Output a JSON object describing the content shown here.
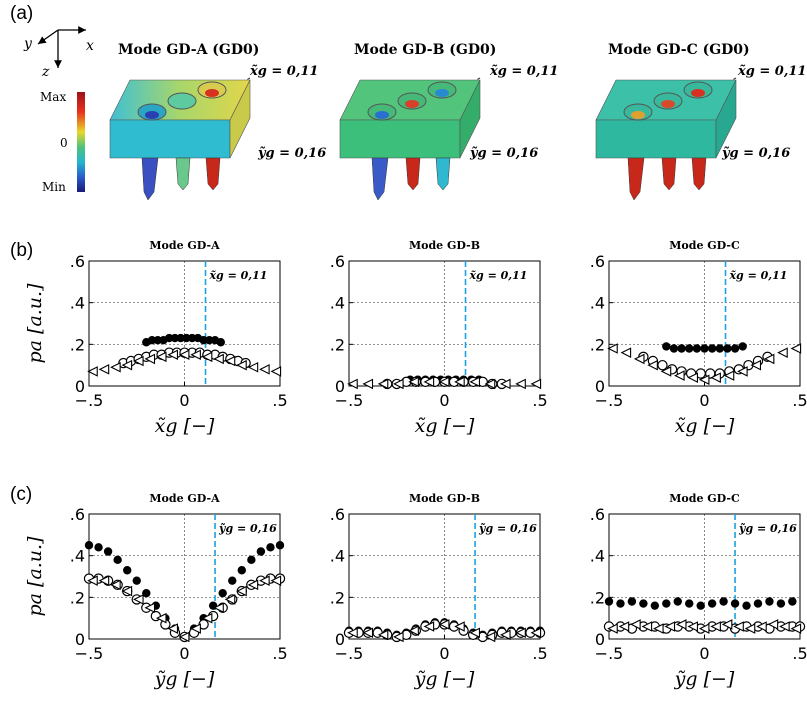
{
  "figure": {
    "panel_a": {
      "label": "(a)",
      "axes": {
        "y": "y",
        "x": "x",
        "z": "z"
      },
      "scale": {
        "max": "Max",
        "mid": "0",
        "min": "Min"
      },
      "modes": [
        {
          "title": "Mode GD-A (GD0)",
          "x_cut": "x̃g = 0,11",
          "y_cut": "ỹg = 0,16"
        },
        {
          "title": "Mode GD-B (GD0)",
          "x_cut": "x̃g = 0,11",
          "y_cut": "ỹg = 0,16"
        },
        {
          "title": "Mode GD-C (GD0)",
          "x_cut": "x̃g = 0,11",
          "y_cut": "ỹg = 0,16"
        }
      ],
      "colors": {
        "gd_a_top": "#d9d94a",
        "gd_a_left": "#2fbcd0",
        "gd_b": "#3cbf7a",
        "gd_c": "#2fb8a0"
      }
    },
    "panel_b": {
      "label": "(b)"
    },
    "panel_c": {
      "label": "(c)"
    }
  },
  "chart_data": [
    {
      "type": "scatter",
      "panel": "b",
      "title": "Mode GD-A",
      "xlabel": "x̃g [−]",
      "ylabel": "pa [a.u.]",
      "xlim": [
        -0.5,
        0.5
      ],
      "ylim": [
        0,
        0.6
      ],
      "xticks": [
        -0.5,
        0,
        0.5
      ],
      "yticks": [
        0,
        0.2,
        0.4,
        0.6
      ],
      "grid": true,
      "vline": {
        "x": 0.11,
        "label": "x̃g = 0,11",
        "color": "#1aa3e0"
      },
      "series": [
        {
          "marker": "filled-circle",
          "x": [
            -0.2,
            -0.17,
            -0.14,
            -0.11,
            -0.08,
            -0.05,
            -0.02,
            0.01,
            0.04,
            0.07,
            0.1,
            0.13,
            0.16,
            0.19
          ],
          "y": [
            0.21,
            0.22,
            0.22,
            0.22,
            0.23,
            0.23,
            0.23,
            0.23,
            0.23,
            0.23,
            0.22,
            0.22,
            0.22,
            0.21
          ]
        },
        {
          "marker": "open-circle",
          "x": [
            -0.32,
            -0.28,
            -0.24,
            -0.2,
            -0.16,
            -0.12,
            -0.08,
            -0.04,
            0,
            0.04,
            0.08,
            0.12,
            0.16,
            0.2,
            0.24,
            0.28,
            0.32
          ],
          "y": [
            0.11,
            0.12,
            0.13,
            0.14,
            0.15,
            0.15,
            0.16,
            0.16,
            0.16,
            0.16,
            0.16,
            0.15,
            0.15,
            0.14,
            0.13,
            0.12,
            0.11
          ]
        },
        {
          "marker": "open-triangle",
          "x": [
            -0.48,
            -0.42,
            -0.36,
            -0.3,
            -0.24,
            -0.18,
            -0.12,
            -0.06,
            0,
            0.06,
            0.12,
            0.18,
            0.24,
            0.3,
            0.36,
            0.42,
            0.48
          ],
          "y": [
            0.07,
            0.08,
            0.09,
            0.1,
            0.12,
            0.13,
            0.14,
            0.15,
            0.15,
            0.15,
            0.14,
            0.13,
            0.12,
            0.1,
            0.09,
            0.08,
            0.07
          ]
        }
      ]
    },
    {
      "type": "scatter",
      "panel": "b",
      "title": "Mode GD-B",
      "xlabel": "x̃g [−]",
      "ylabel": "",
      "xlim": [
        -0.5,
        0.5
      ],
      "ylim": [
        0,
        0.6
      ],
      "xticks": [
        -0.5,
        0,
        0.5
      ],
      "yticks": [
        0,
        0.2,
        0.4,
        0.6
      ],
      "grid": true,
      "vline": {
        "x": 0.11,
        "label": "x̃g = 0,11",
        "color": "#1aa3e0"
      },
      "series": [
        {
          "marker": "filled-circle",
          "x": [
            -0.18,
            -0.14,
            -0.1,
            -0.06,
            -0.02,
            0.02,
            0.06,
            0.1,
            0.14,
            0.18
          ],
          "y": [
            0.03,
            0.03,
            0.03,
            0.03,
            0.03,
            0.03,
            0.03,
            0.03,
            0.03,
            0.03
          ]
        },
        {
          "marker": "open-circle",
          "x": [
            -0.3,
            -0.25,
            -0.2,
            -0.15,
            -0.1,
            -0.05,
            0,
            0.05,
            0.1,
            0.15,
            0.2,
            0.25,
            0.3
          ],
          "y": [
            0.01,
            0.01,
            0.02,
            0.02,
            0.02,
            0.02,
            0.02,
            0.02,
            0.02,
            0.02,
            0.02,
            0.01,
            0.01
          ]
        },
        {
          "marker": "open-triangle",
          "x": [
            -0.48,
            -0.4,
            -0.32,
            -0.24,
            -0.16,
            -0.08,
            0,
            0.08,
            0.16,
            0.24,
            0.32,
            0.4,
            0.48
          ],
          "y": [
            0.01,
            0.01,
            0.01,
            0.01,
            0.02,
            0.02,
            0.02,
            0.02,
            0.02,
            0.01,
            0.01,
            0.01,
            0.01
          ]
        }
      ]
    },
    {
      "type": "scatter",
      "panel": "b",
      "title": "Mode GD-C",
      "xlabel": "x̃g [−]",
      "ylabel": "",
      "xlim": [
        -0.5,
        0.5
      ],
      "ylim": [
        0,
        0.6
      ],
      "xticks": [
        -0.5,
        0,
        0.5
      ],
      "yticks": [
        0,
        0.2,
        0.4,
        0.6
      ],
      "grid": true,
      "vline": {
        "x": 0.11,
        "label": "x̃g = 0,11",
        "color": "#1aa3e0"
      },
      "series": [
        {
          "marker": "filled-circle",
          "x": [
            -0.2,
            -0.16,
            -0.12,
            -0.08,
            -0.04,
            0,
            0.04,
            0.08,
            0.12,
            0.16,
            0.2
          ],
          "y": [
            0.19,
            0.18,
            0.18,
            0.18,
            0.18,
            0.18,
            0.18,
            0.18,
            0.18,
            0.18,
            0.19
          ]
        },
        {
          "marker": "open-circle",
          "x": [
            -0.32,
            -0.27,
            -0.22,
            -0.17,
            -0.12,
            -0.07,
            -0.02,
            0.03,
            0.08,
            0.13,
            0.18,
            0.23,
            0.28,
            0.33
          ],
          "y": [
            0.14,
            0.12,
            0.1,
            0.08,
            0.07,
            0.06,
            0.06,
            0.06,
            0.06,
            0.07,
            0.08,
            0.1,
            0.12,
            0.14
          ]
        },
        {
          "marker": "open-triangle",
          "x": [
            -0.48,
            -0.41,
            -0.34,
            -0.27,
            -0.2,
            -0.13,
            -0.06,
            0,
            0.06,
            0.13,
            0.2,
            0.27,
            0.34,
            0.41,
            0.48
          ],
          "y": [
            0.18,
            0.16,
            0.13,
            0.1,
            0.07,
            0.05,
            0.04,
            0.03,
            0.04,
            0.05,
            0.07,
            0.1,
            0.13,
            0.16,
            0.18
          ]
        }
      ]
    },
    {
      "type": "scatter",
      "panel": "c",
      "title": "Mode GD-A",
      "xlabel": "ỹg [−]",
      "ylabel": "pa [a.u.]",
      "xlim": [
        -0.5,
        0.5
      ],
      "ylim": [
        0,
        0.6
      ],
      "xticks": [
        -0.5,
        0,
        0.5
      ],
      "yticks": [
        0,
        0.2,
        0.4,
        0.6
      ],
      "grid": true,
      "vline": {
        "x": 0.16,
        "label": "ỹg = 0,16",
        "color": "#1aa3e0"
      },
      "series": [
        {
          "marker": "filled-circle",
          "x": [
            -0.5,
            -0.45,
            -0.4,
            -0.35,
            -0.3,
            -0.25,
            -0.2,
            -0.15,
            -0.1,
            -0.05,
            0,
            0.05,
            0.1,
            0.15,
            0.2,
            0.25,
            0.3,
            0.35,
            0.4,
            0.45,
            0.5
          ],
          "y": [
            0.45,
            0.44,
            0.42,
            0.38,
            0.33,
            0.28,
            0.22,
            0.16,
            0.1,
            0.05,
            0.01,
            0.05,
            0.1,
            0.16,
            0.22,
            0.28,
            0.33,
            0.38,
            0.42,
            0.44,
            0.45
          ]
        },
        {
          "marker": "open-circle",
          "x": [
            -0.5,
            -0.45,
            -0.4,
            -0.35,
            -0.3,
            -0.25,
            -0.2,
            -0.15,
            -0.1,
            -0.05,
            0,
            0.05,
            0.1,
            0.15,
            0.2,
            0.25,
            0.3,
            0.35,
            0.4,
            0.45,
            0.5
          ],
          "y": [
            0.29,
            0.29,
            0.28,
            0.26,
            0.23,
            0.19,
            0.15,
            0.11,
            0.07,
            0.03,
            0.01,
            0.03,
            0.07,
            0.11,
            0.15,
            0.19,
            0.23,
            0.26,
            0.28,
            0.29,
            0.29
          ]
        },
        {
          "marker": "open-triangle",
          "x": [
            -0.48,
            -0.42,
            -0.36,
            -0.3,
            -0.24,
            -0.18,
            -0.12,
            -0.06,
            0,
            0.06,
            0.12,
            0.18,
            0.24,
            0.3,
            0.36,
            0.42,
            0.48
          ],
          "y": [
            0.28,
            0.28,
            0.26,
            0.23,
            0.19,
            0.15,
            0.1,
            0.05,
            0.01,
            0.05,
            0.1,
            0.15,
            0.19,
            0.23,
            0.26,
            0.28,
            0.28
          ]
        }
      ]
    },
    {
      "type": "scatter",
      "panel": "c",
      "title": "Mode GD-B",
      "xlabel": "ỹg [−]",
      "ylabel": "",
      "xlim": [
        -0.5,
        0.5
      ],
      "ylim": [
        0,
        0.6
      ],
      "xticks": [
        -0.5,
        0,
        0.5
      ],
      "yticks": [
        0,
        0.2,
        0.4,
        0.6
      ],
      "grid": true,
      "vline": {
        "x": 0.16,
        "label": "ỹg = 0,16",
        "color": "#1aa3e0"
      },
      "series": [
        {
          "marker": "filled-circle",
          "x": [
            -0.5,
            -0.45,
            -0.4,
            -0.35,
            -0.3,
            -0.25,
            -0.2,
            -0.15,
            -0.1,
            -0.05,
            0,
            0.05,
            0.1,
            0.15,
            0.2,
            0.25,
            0.3,
            0.35,
            0.4,
            0.45,
            0.5
          ],
          "y": [
            0.04,
            0.04,
            0.04,
            0.04,
            0.03,
            0.02,
            0.03,
            0.05,
            0.07,
            0.08,
            0.08,
            0.07,
            0.05,
            0.03,
            0.02,
            0.03,
            0.04,
            0.04,
            0.04,
            0.04,
            0.04
          ]
        },
        {
          "marker": "open-circle",
          "x": [
            -0.5,
            -0.45,
            -0.4,
            -0.35,
            -0.3,
            -0.25,
            -0.2,
            -0.15,
            -0.1,
            -0.05,
            0,
            0.05,
            0.1,
            0.15,
            0.2,
            0.25,
            0.3,
            0.35,
            0.4,
            0.45,
            0.5
          ],
          "y": [
            0.03,
            0.03,
            0.03,
            0.03,
            0.02,
            0.01,
            0.02,
            0.04,
            0.06,
            0.07,
            0.07,
            0.06,
            0.04,
            0.02,
            0.01,
            0.02,
            0.03,
            0.03,
            0.03,
            0.03,
            0.03
          ]
        },
        {
          "marker": "open-triangle",
          "x": [
            -0.48,
            -0.4,
            -0.32,
            -0.24,
            -0.16,
            -0.08,
            0,
            0.08,
            0.16,
            0.24,
            0.32,
            0.4,
            0.48
          ],
          "y": [
            0.03,
            0.03,
            0.02,
            0.01,
            0.04,
            0.06,
            0.07,
            0.06,
            0.03,
            0.01,
            0.02,
            0.03,
            0.03
          ]
        }
      ]
    },
    {
      "type": "scatter",
      "panel": "c",
      "title": "Mode GD-C",
      "xlabel": "ỹg [−]",
      "ylabel": "",
      "xlim": [
        -0.5,
        0.5
      ],
      "ylim": [
        0,
        0.6
      ],
      "xticks": [
        -0.5,
        0,
        0.5
      ],
      "yticks": [
        0,
        0.2,
        0.4,
        0.6
      ],
      "grid": true,
      "vline": {
        "x": 0.16,
        "label": "ỹg = 0,16",
        "color": "#1aa3e0"
      },
      "series": [
        {
          "marker": "filled-circle",
          "x": [
            -0.5,
            -0.44,
            -0.38,
            -0.32,
            -0.26,
            -0.2,
            -0.14,
            -0.08,
            -0.02,
            0.04,
            0.1,
            0.16,
            0.22,
            0.28,
            0.34,
            0.4,
            0.46
          ],
          "y": [
            0.18,
            0.17,
            0.18,
            0.17,
            0.16,
            0.17,
            0.18,
            0.17,
            0.16,
            0.17,
            0.18,
            0.17,
            0.16,
            0.17,
            0.18,
            0.17,
            0.18
          ]
        },
        {
          "marker": "open-circle",
          "x": [
            -0.5,
            -0.44,
            -0.38,
            -0.32,
            -0.26,
            -0.2,
            -0.14,
            -0.08,
            -0.02,
            0.04,
            0.1,
            0.16,
            0.22,
            0.28,
            0.34,
            0.4,
            0.46,
            0.5
          ],
          "y": [
            0.06,
            0.06,
            0.05,
            0.06,
            0.06,
            0.05,
            0.06,
            0.06,
            0.05,
            0.06,
            0.06,
            0.05,
            0.06,
            0.06,
            0.05,
            0.06,
            0.06,
            0.06
          ]
        },
        {
          "marker": "open-triangle",
          "x": [
            -0.48,
            -0.42,
            -0.36,
            -0.3,
            -0.24,
            -0.18,
            -0.12,
            -0.06,
            0,
            0.06,
            0.12,
            0.18,
            0.24,
            0.3,
            0.36,
            0.42,
            0.48
          ],
          "y": [
            0.05,
            0.06,
            0.07,
            0.06,
            0.05,
            0.06,
            0.07,
            0.06,
            0.05,
            0.06,
            0.07,
            0.06,
            0.05,
            0.06,
            0.07,
            0.06,
            0.05
          ]
        }
      ]
    }
  ]
}
